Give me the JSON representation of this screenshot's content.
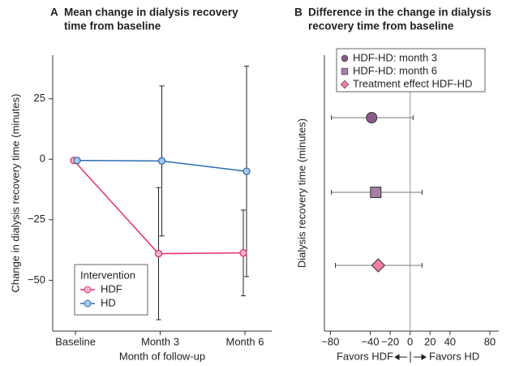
{
  "chart_data": [
    {
      "type": "line",
      "panel": "A",
      "title": [
        "Mean change in dialysis recovery",
        "time from baseline"
      ],
      "xlabel": "Month of follow-up",
      "ylabel": "Change in dialysis recovery time (minutes)",
      "categories": [
        "Baseline",
        "Month 3",
        "Month 6"
      ],
      "ylim": [
        -71,
        43
      ],
      "yticks": [
        25,
        0,
        {
          "value": -25,
          "label": "−25"
        },
        {
          "value": -50,
          "label": "−50"
        }
      ],
      "series": [
        {
          "name": "HDF",
          "color": "#e0336b",
          "fill": "#f7b8c8",
          "values": [
            -0.5,
            -39,
            -38.7
          ],
          "errors": [
            null,
            27.3,
            17.7
          ]
        },
        {
          "name": "HD",
          "color": "#2e6db0",
          "fill": "#a9c9ea",
          "values": [
            -0.5,
            -0.7,
            -5
          ],
          "errors": [
            null,
            31,
            43.5
          ]
        }
      ],
      "legend": {
        "title": "Intervention",
        "loc": "lower left"
      }
    },
    {
      "type": "forest",
      "panel": "B",
      "title": [
        "Difference in the change in dialysis",
        "recovery time from baseline"
      ],
      "ylabel": "Dialysis recovery time (minutes)",
      "xlabel": [
        "Favors HDF",
        "Favors HD"
      ],
      "xlim": [
        -86,
        89
      ],
      "xticks": [
        {
          "value": -80,
          "label": "−80"
        },
        {
          "value": -40,
          "label": "−40"
        },
        {
          "value": -20,
          "label": "−20"
        },
        0,
        20,
        40,
        80
      ],
      "series": [
        {
          "name": "HDF-HD: month 3",
          "marker": "circle",
          "color": "#8b5b8b",
          "values": [
            -38.6
          ],
          "lower": [
            -79
          ],
          "upper": [
            3
          ]
        },
        {
          "name": "HDF-HD: month 6",
          "marker": "square",
          "color": "#a57ea5",
          "values": [
            -34.5
          ],
          "lower": [
            -79
          ],
          "upper": [
            12
          ]
        },
        {
          "name": "Treatment effect HDF-HD",
          "marker": "diamond",
          "color": "#f07fa0",
          "values": [
            -32
          ],
          "lower": [
            -75
          ],
          "upper": [
            12
          ]
        }
      ],
      "legend": {
        "loc": "upper left"
      }
    }
  ]
}
